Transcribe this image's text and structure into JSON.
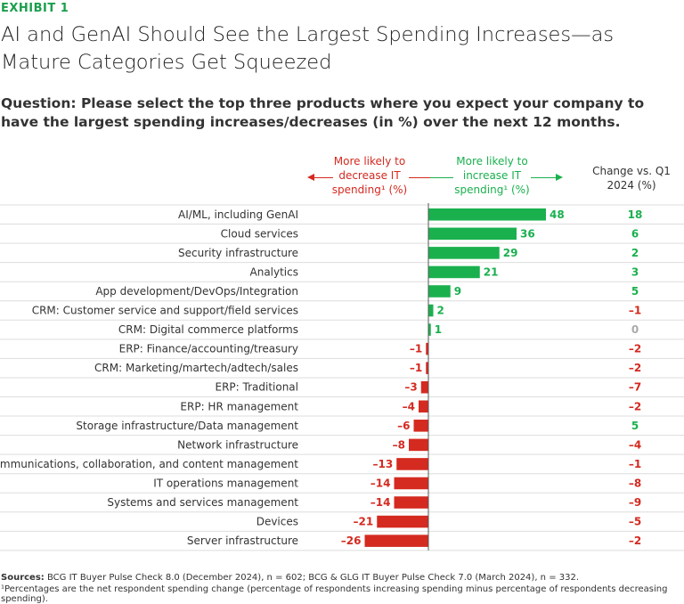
{
  "exhibit": "EXHIBIT 1",
  "title": "AI and GenAI Should See the Largest Spending Increases—as Mature Categories Get Squeezed",
  "question": "Question: Please select the top three products where you expect your company to have the largest spending increases/decreases (in %) over the next 12 months.",
  "headers": {
    "decrease": "More likely to decrease IT spending¹ (%)",
    "increase": "More likely to increase IT spending¹ (%)",
    "change": "Change vs. Q1 2024 (%)"
  },
  "colors": {
    "positive": "#1ab04e",
    "negative": "#d42a20",
    "neutral": "#aaaaaa",
    "accent": "#1a9e4c"
  },
  "chart_data": {
    "type": "bar",
    "orientation": "horizontal",
    "categories": [
      "AI/ML, including GenAI",
      "Cloud services",
      "Security infrastructure",
      "Analytics",
      "App development/DevOps/Integration",
      "CRM: Customer service and support/field services",
      "CRM: Digital commerce platforms",
      "ERP: Finance/accounting/treasury",
      "CRM: Marketing/martech/adtech/sales",
      "ERP: Traditional",
      "ERP: HR management",
      "Storage infrastructure/Data management",
      "Network infrastructure",
      "Communications, collaboration, and content management",
      "IT operations management",
      "Systems and services management",
      "Devices",
      "Server infrastructure"
    ],
    "values": [
      48,
      36,
      29,
      21,
      9,
      2,
      1,
      -1,
      -1,
      -3,
      -4,
      -6,
      -8,
      -13,
      -14,
      -14,
      -21,
      -26
    ],
    "change_vs_q1_2024": [
      18,
      6,
      2,
      3,
      5,
      -1,
      0,
      -2,
      -2,
      -7,
      -2,
      5,
      -4,
      -1,
      -8,
      -9,
      -5,
      -2
    ],
    "xlim": [
      -26,
      48
    ]
  },
  "footer": {
    "sources_label": "Sources:",
    "sources": "BCG IT Buyer Pulse Check 8.0 (December 2024), n = 602; BCG & GLG IT Buyer Pulse Check 7.0 (March 2024), n = 332.",
    "footnote": "¹Percentages are the net respondent spending change (percentage of respondents increasing spending minus percentage of respondents decreasing spending)."
  }
}
